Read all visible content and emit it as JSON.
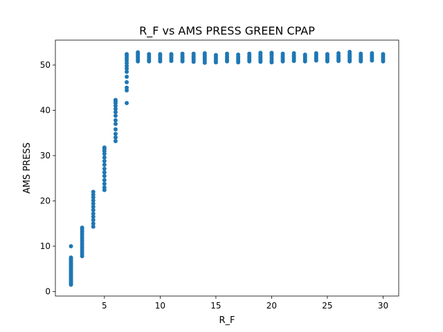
{
  "chart_data": {
    "type": "scatter",
    "title": "R_F vs AMS PRESS GREEN CPAP",
    "xlabel": "R_F",
    "ylabel": "AMS PRESS",
    "xlim": [
      0.6,
      31.4
    ],
    "ylim": [
      -1.0,
      55.5
    ],
    "xticks": [
      5,
      10,
      15,
      20,
      25,
      30
    ],
    "yticks": [
      0,
      10,
      20,
      30,
      40,
      50
    ],
    "grid": false,
    "marker_color": "#1f77b4",
    "series": [
      {
        "columns": [
          {
            "x": 2,
            "y": [
              1.5,
              1.8,
              2.1,
              2.4,
              2.7,
              3.0,
              3.3,
              3.6,
              3.9,
              4.2,
              4.5,
              4.8,
              5.1,
              5.4,
              5.7,
              6.0,
              6.3,
              6.6,
              6.9,
              7.2,
              7.5,
              10.0
            ]
          },
          {
            "x": 3,
            "y": [
              7.8,
              8.3,
              8.8,
              9.3,
              9.8,
              10.3,
              10.8,
              11.3,
              11.8,
              12.3,
              12.8,
              13.3,
              13.8,
              14.1
            ]
          },
          {
            "x": 4,
            "y": [
              14.3,
              15.0,
              15.8,
              16.5,
              17.2,
              18.0,
              18.7,
              19.4,
              20.1,
              20.8,
              21.4,
              22.0
            ]
          },
          {
            "x": 5,
            "y": [
              22.4,
              23.0,
              23.8,
              24.6,
              25.5,
              26.3,
              27.1,
              28.0,
              28.8,
              29.6,
              30.4,
              31.0,
              31.5,
              31.8
            ]
          },
          {
            "x": 6,
            "y": [
              33.2,
              34.0,
              34.8,
              35.8,
              37.0,
              37.8,
              38.8,
              39.6,
              40.3,
              41.0,
              41.6,
              42.0,
              42.3
            ]
          },
          {
            "x": 7,
            "y": [
              41.6,
              44.4,
              45.0,
              46.2,
              47.4,
              48.5,
              49.2,
              49.8,
              50.4,
              51.0,
              51.5,
              52.0,
              52.4
            ]
          },
          {
            "x": 8,
            "y": [
              50.8,
              51.2,
              51.6,
              52.0,
              52.4,
              52.8
            ]
          },
          {
            "x": 9,
            "y": [
              50.8,
              51.2,
              51.6,
              52.0,
              52.4
            ]
          },
          {
            "x": 10,
            "y": [
              50.8,
              51.2,
              51.6,
              52.0,
              52.4
            ]
          },
          {
            "x": 11,
            "y": [
              50.9,
              51.3,
              51.7,
              52.1,
              52.4
            ]
          },
          {
            "x": 12,
            "y": [
              50.8,
              51.2,
              51.6,
              52.0,
              52.5
            ]
          },
          {
            "x": 13,
            "y": [
              50.7,
              51.2,
              51.6,
              52.0,
              52.5
            ]
          },
          {
            "x": 14,
            "y": [
              50.5,
              51.0,
              51.4,
              51.8,
              52.2,
              52.6
            ]
          },
          {
            "x": 15,
            "y": [
              50.6,
              51.0,
              51.4,
              51.8,
              52.2
            ]
          },
          {
            "x": 16,
            "y": [
              50.8,
              51.2,
              51.6,
              52.0,
              52.5
            ]
          },
          {
            "x": 17,
            "y": [
              50.6,
              51.0,
              51.4,
              51.8,
              52.3
            ]
          },
          {
            "x": 18,
            "y": [
              50.8,
              51.2,
              51.6,
              52.0,
              52.5
            ]
          },
          {
            "x": 19,
            "y": [
              50.7,
              51.1,
              51.5,
              51.9,
              52.3,
              52.7
            ]
          },
          {
            "x": 20,
            "y": [
              50.6,
              51.0,
              51.5,
              52.0,
              52.4,
              52.7
            ]
          },
          {
            "x": 21,
            "y": [
              50.8,
              51.2,
              51.6,
              52.0,
              52.5
            ]
          },
          {
            "x": 22,
            "y": [
              50.9,
              51.3,
              51.7,
              52.1,
              52.6
            ]
          },
          {
            "x": 23,
            "y": [
              50.8,
              51.2,
              51.6,
              52.0,
              52.3
            ]
          },
          {
            "x": 24,
            "y": [
              51.0,
              51.4,
              51.8,
              52.2,
              52.6
            ]
          },
          {
            "x": 25,
            "y": [
              50.8,
              51.2,
              51.6,
              52.0,
              52.4
            ]
          },
          {
            "x": 26,
            "y": [
              50.9,
              51.3,
              51.7,
              52.1,
              52.6
            ]
          },
          {
            "x": 27,
            "y": [
              50.8,
              51.2,
              51.6,
              52.0,
              52.4,
              52.9
            ]
          },
          {
            "x": 28,
            "y": [
              50.8,
              51.2,
              51.6,
              52.0,
              52.5
            ]
          },
          {
            "x": 29,
            "y": [
              51.0,
              51.4,
              51.8,
              52.2,
              52.6
            ]
          },
          {
            "x": 30,
            "y": [
              50.8,
              51.2,
              51.6,
              52.0,
              52.4
            ]
          }
        ]
      }
    ]
  }
}
